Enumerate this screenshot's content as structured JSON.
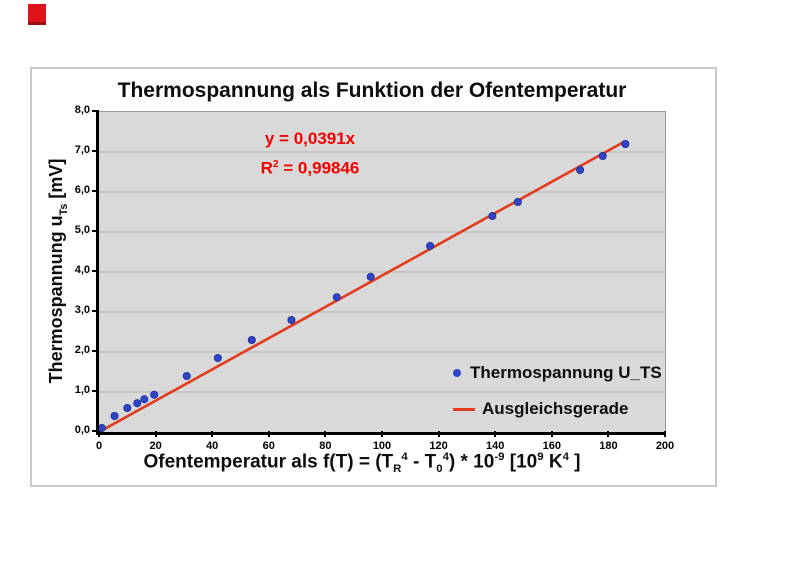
{
  "page": {
    "red_square_color": "#df1119"
  },
  "chart_data": {
    "type": "scatter",
    "title": "Thermospannung als Funktion der Ofentemperatur",
    "xlabel_plain": "Ofentemperatur als f(T) = (TR4 - T04) * 10-9 [109 K4 ]",
    "ylabel_plain": "Thermospannung uTs  [mV]",
    "xlabel_segments": [
      {
        "t": "Ofentemperatur als f(T) = (T"
      },
      {
        "t": "R",
        "style": "sub"
      },
      {
        "t": "4",
        "style": "sup"
      },
      {
        "t": " - T"
      },
      {
        "t": "0",
        "style": "sub"
      },
      {
        "t": "4",
        "style": "sup"
      },
      {
        "t": ") * 10"
      },
      {
        "t": "-9",
        "style": "sup"
      },
      {
        "t": " [10"
      },
      {
        "t": "9",
        "style": "sup"
      },
      {
        "t": " K"
      },
      {
        "t": "4",
        "style": "sup"
      },
      {
        "t": " ]"
      }
    ],
    "ylabel_segments": [
      {
        "t": "Thermospannung u"
      },
      {
        "t": "Ts",
        "style": "sub"
      },
      {
        "t": "  [mV]"
      }
    ],
    "xlim": [
      0,
      200
    ],
    "ylim": [
      0,
      8
    ],
    "x_ticks": [
      "0",
      "20",
      "40",
      "60",
      "80",
      "100",
      "120",
      "140",
      "160",
      "180",
      "200"
    ],
    "y_ticks": [
      "0,0",
      "1,0",
      "2,0",
      "3,0",
      "4,0",
      "5,0",
      "6,0",
      "7,0",
      "8,0"
    ],
    "grid": "horizontal-only",
    "series_label": "Thermospannung U_TS",
    "trend_label": "Ausgleichsgerade",
    "legend_position": "inside-lower-right",
    "points": [
      [
        1,
        0.1
      ],
      [
        5.5,
        0.4
      ],
      [
        10,
        0.6
      ],
      [
        13.5,
        0.72
      ],
      [
        16,
        0.82
      ],
      [
        19.5,
        0.93
      ],
      [
        31,
        1.4
      ],
      [
        42,
        1.85
      ],
      [
        54,
        2.3
      ],
      [
        68,
        2.8
      ],
      [
        84,
        3.37
      ],
      [
        96,
        3.88
      ],
      [
        117,
        4.65
      ],
      [
        139,
        5.4
      ],
      [
        148,
        5.75
      ],
      [
        170,
        6.55
      ],
      [
        178,
        6.9
      ],
      [
        186,
        7.2
      ]
    ],
    "trendline": {
      "slope": 0.0391,
      "intercept": 0,
      "x_start": 0,
      "x_end": 185.5,
      "equation_label": "y = 0,0391x",
      "r2_value": "0,99846",
      "r2_segments": [
        {
          "t": "R"
        },
        {
          "t": "2",
          "style": "sup"
        },
        {
          "t": " = 0,99846"
        }
      ]
    },
    "colors": {
      "marker": "#2e45c8",
      "marker_edge": "#1b2a96",
      "trend": "#e23a1a",
      "grid": "#b3b3b3",
      "plot_bg": "#d9d9d9",
      "equation": "#f40000"
    }
  }
}
